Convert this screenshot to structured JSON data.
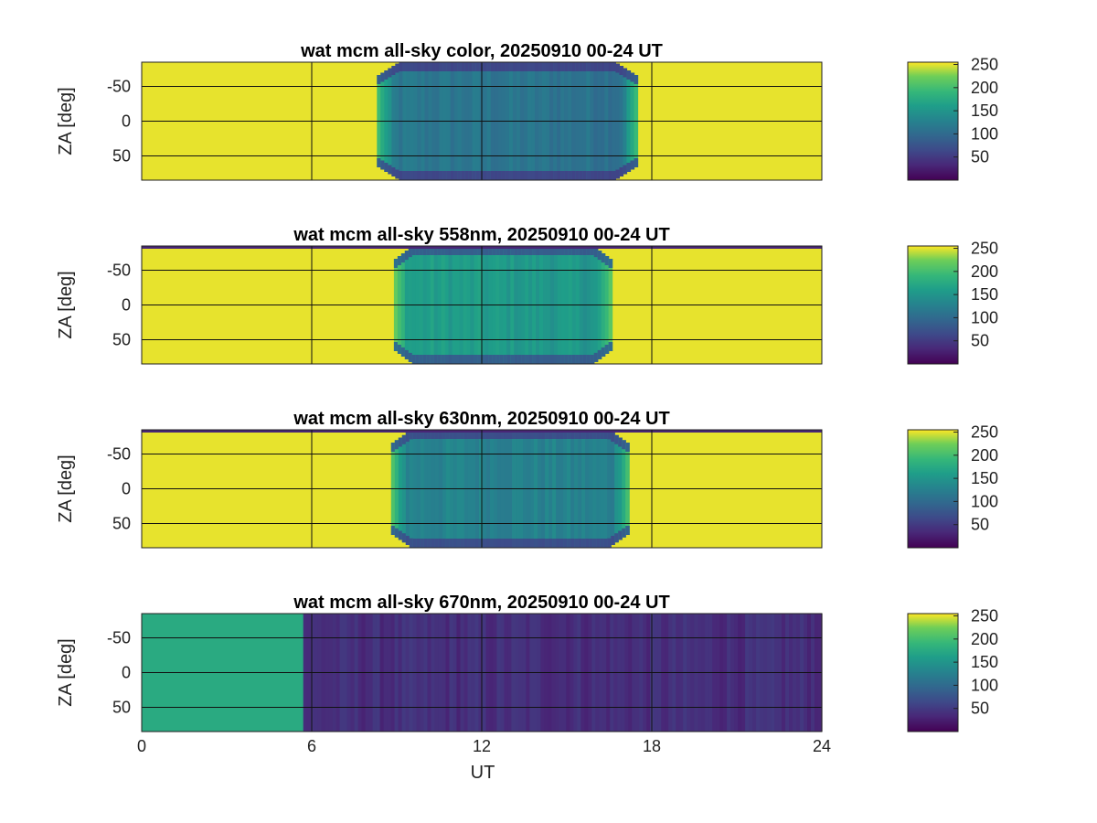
{
  "figure": {
    "xlabel": "UT",
    "ylabel": "ZA [deg]",
    "xticks": [
      "0",
      "6",
      "12",
      "18",
      "24"
    ],
    "yticks": [
      "-50",
      "0",
      "50"
    ],
    "colorbar_ticks": [
      "250",
      "200",
      "150",
      "100",
      "50"
    ]
  },
  "chart_data": [
    {
      "type": "heatmap",
      "title": "wat mcm all-sky color, 20250910 00-24 UT",
      "xlabel": "",
      "ylabel": "ZA [deg]",
      "xlim": [
        0,
        24
      ],
      "ylim": [
        -85,
        85
      ],
      "xticks": [
        0,
        6,
        12,
        18,
        24
      ],
      "yticks": [
        -50,
        0,
        50
      ],
      "clim": [
        0,
        255
      ],
      "colormap": "viridis",
      "day_value": 250,
      "night_start": 8.3,
      "night_end": 17.5,
      "night_level": 115,
      "night_level_late": 108,
      "edge_level": 40
    },
    {
      "type": "heatmap",
      "title": "wat mcm all-sky 558nm, 20250910 00-24 UT",
      "xlabel": "",
      "ylabel": "ZA [deg]",
      "xlim": [
        0,
        24
      ],
      "ylim": [
        -85,
        85
      ],
      "xticks": [
        0,
        6,
        12,
        18,
        24
      ],
      "yticks": [
        -50,
        0,
        50
      ],
      "clim": [
        0,
        255
      ],
      "colormap": "viridis",
      "day_value": 250,
      "night_start": 8.9,
      "night_end": 16.6,
      "night_level": 160,
      "night_level_late": 150,
      "edge_level": 55
    },
    {
      "type": "heatmap",
      "title": "wat mcm all-sky 630nm, 20250910 00-24 UT",
      "xlabel": "",
      "ylabel": "ZA [deg]",
      "xlim": [
        0,
        24
      ],
      "ylim": [
        -85,
        85
      ],
      "xticks": [
        0,
        6,
        12,
        18,
        24
      ],
      "yticks": [
        -50,
        0,
        50
      ],
      "clim": [
        0,
        255
      ],
      "colormap": "viridis",
      "day_value": 250,
      "night_start": 8.8,
      "night_end": 17.2,
      "night_level": 130,
      "night_level_late": 125,
      "edge_level": 45
    },
    {
      "type": "heatmap",
      "title": "wat mcm all-sky 670nm, 20250910 00-24 UT",
      "xlabel": "UT",
      "ylabel": "ZA [deg]",
      "xlim": [
        0,
        24
      ],
      "ylim": [
        -85,
        85
      ],
      "xticks": [
        0,
        6,
        12,
        18,
        24
      ],
      "yticks": [
        -50,
        0,
        50
      ],
      "clim": [
        0,
        255
      ],
      "colormap": "viridis",
      "day_value": 175,
      "night_start": 5.7,
      "night_end": 24,
      "night_level": 38,
      "night_level_late": 38,
      "edge_level": 38
    }
  ]
}
